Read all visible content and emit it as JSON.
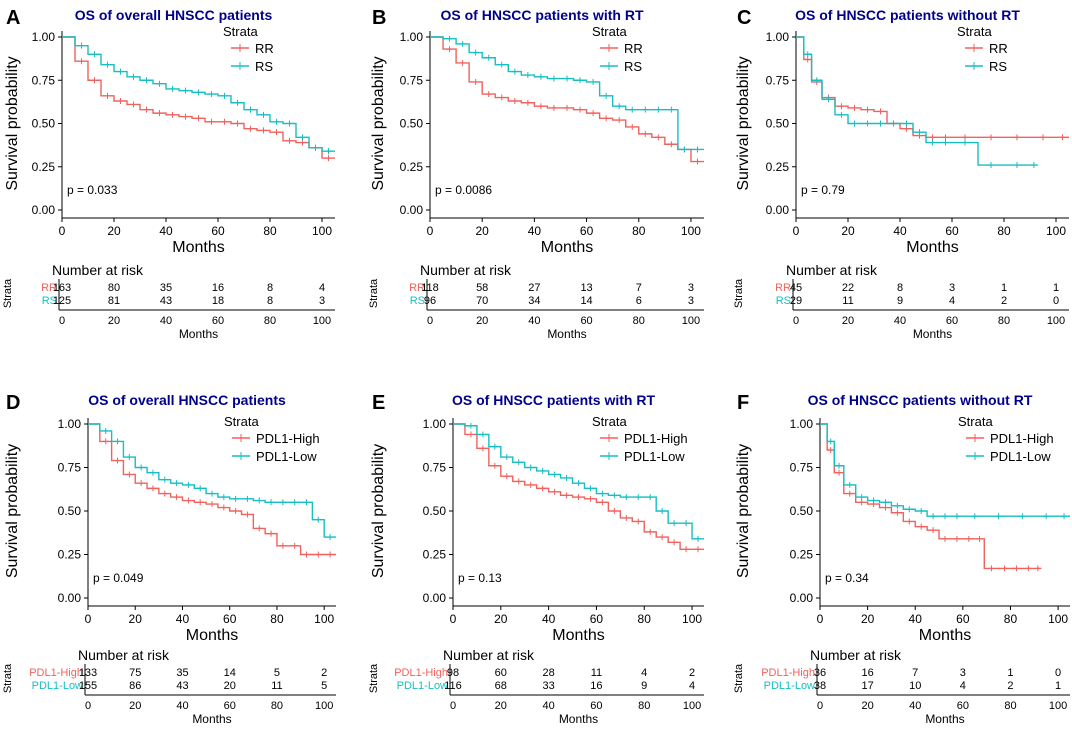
{
  "colors": {
    "red": "#f0625d",
    "teal": "#17bec3",
    "title": "#00008b",
    "axis": "#000000"
  },
  "common": {
    "ylabel": "Survival probability",
    "xlabel": "Months",
    "strata_title": "Strata",
    "risk_title": "Number at risk",
    "risk_ylabel": "Strata",
    "risk_xlabel": "Months",
    "y_ticks": [
      "0.00",
      "0.25",
      "0.50",
      "0.75",
      "1.00"
    ],
    "x_ticks": [
      "0",
      "20",
      "40",
      "60",
      "80",
      "100"
    ]
  },
  "chart_data": [
    {
      "type": "line",
      "letter": "A",
      "title": "OS of overall HNSCC patients",
      "pvalue": "p = 0.033",
      "xlim": [
        0,
        105
      ],
      "ylim": [
        0,
        1
      ],
      "risk_times": [
        0,
        20,
        40,
        60,
        80,
        100
      ],
      "series": [
        {
          "name": "RR",
          "color": "red",
          "x": [
            0,
            5,
            10,
            15,
            20,
            25,
            30,
            35,
            40,
            45,
            50,
            55,
            60,
            65,
            70,
            75,
            80,
            85,
            90,
            95,
            100,
            105
          ],
          "y": [
            1,
            0.86,
            0.75,
            0.66,
            0.63,
            0.61,
            0.58,
            0.56,
            0.55,
            0.54,
            0.53,
            0.51,
            0.51,
            0.5,
            0.47,
            0.46,
            0.45,
            0.4,
            0.39,
            0.36,
            0.3,
            0.3
          ],
          "risk": [
            163,
            80,
            35,
            16,
            8,
            4
          ]
        },
        {
          "name": "RS",
          "color": "teal",
          "x": [
            0,
            5,
            10,
            15,
            20,
            25,
            30,
            35,
            40,
            45,
            50,
            55,
            60,
            65,
            70,
            75,
            80,
            85,
            90,
            95,
            100,
            105
          ],
          "y": [
            1,
            0.95,
            0.9,
            0.84,
            0.8,
            0.77,
            0.75,
            0.73,
            0.7,
            0.69,
            0.68,
            0.67,
            0.66,
            0.62,
            0.58,
            0.55,
            0.51,
            0.5,
            0.42,
            0.36,
            0.34,
            0.34
          ],
          "risk": [
            125,
            81,
            43,
            18,
            8,
            3
          ]
        }
      ]
    },
    {
      "type": "line",
      "letter": "B",
      "title": "OS of HNSCC patients with RT",
      "pvalue": "p = 0.0086",
      "xlim": [
        0,
        105
      ],
      "ylim": [
        0,
        1
      ],
      "risk_times": [
        0,
        20,
        40,
        60,
        80,
        100
      ],
      "series": [
        {
          "name": "RR",
          "color": "red",
          "x": [
            0,
            5,
            10,
            15,
            20,
            25,
            30,
            35,
            40,
            45,
            50,
            55,
            60,
            65,
            70,
            75,
            80,
            85,
            90,
            95,
            100,
            105
          ],
          "y": [
            1,
            0.93,
            0.85,
            0.74,
            0.67,
            0.65,
            0.63,
            0.62,
            0.6,
            0.59,
            0.59,
            0.58,
            0.56,
            0.53,
            0.52,
            0.48,
            0.44,
            0.42,
            0.38,
            0.35,
            0.28,
            0.28
          ],
          "risk": [
            118,
            58,
            27,
            13,
            7,
            3
          ]
        },
        {
          "name": "RS",
          "color": "teal",
          "x": [
            0,
            5,
            10,
            15,
            20,
            25,
            30,
            35,
            40,
            45,
            50,
            55,
            60,
            65,
            70,
            75,
            80,
            85,
            90,
            95,
            100,
            105
          ],
          "y": [
            1,
            0.99,
            0.96,
            0.91,
            0.88,
            0.84,
            0.8,
            0.78,
            0.77,
            0.76,
            0.76,
            0.75,
            0.74,
            0.66,
            0.6,
            0.58,
            0.58,
            0.58,
            0.58,
            0.35,
            0.35,
            0.35
          ],
          "risk": [
            96,
            70,
            34,
            14,
            6,
            3
          ]
        }
      ]
    },
    {
      "type": "line",
      "letter": "C",
      "title": "OS of HNSCC patients without RT",
      "pvalue": "p = 0.79",
      "xlim": [
        0,
        105
      ],
      "ylim": [
        0,
        1
      ],
      "risk_times": [
        0,
        20,
        40,
        60,
        80,
        100
      ],
      "series": [
        {
          "name": "RR",
          "color": "red",
          "x": [
            0,
            3,
            6,
            10,
            15,
            20,
            25,
            30,
            35,
            40,
            45,
            50,
            55,
            60,
            70,
            80,
            90,
            100,
            105
          ],
          "y": [
            1,
            0.87,
            0.74,
            0.65,
            0.6,
            0.59,
            0.58,
            0.57,
            0.5,
            0.47,
            0.43,
            0.42,
            0.42,
            0.42,
            0.42,
            0.42,
            0.42,
            0.42,
            0.42
          ],
          "risk": [
            45,
            22,
            8,
            3,
            1,
            1
          ]
        },
        {
          "name": "RS",
          "color": "teal",
          "x": [
            0,
            3,
            6,
            10,
            15,
            20,
            25,
            30,
            35,
            40,
            45,
            50,
            55,
            60,
            70,
            80,
            90,
            93
          ],
          "y": [
            1,
            0.9,
            0.75,
            0.64,
            0.55,
            0.5,
            0.5,
            0.5,
            0.5,
            0.5,
            0.45,
            0.39,
            0.39,
            0.39,
            0.26,
            0.26,
            0.26,
            0.26
          ],
          "risk": [
            29,
            11,
            9,
            4,
            2,
            0
          ]
        }
      ]
    },
    {
      "type": "line",
      "letter": "D",
      "title": "OS of overall HNSCC patients",
      "pvalue": "p = 0.049",
      "xlim": [
        0,
        105
      ],
      "ylim": [
        0,
        1
      ],
      "risk_times": [
        0,
        20,
        40,
        60,
        80,
        100
      ],
      "series": [
        {
          "name": "PDL1-High",
          "color": "red",
          "x": [
            0,
            5,
            10,
            15,
            20,
            25,
            30,
            35,
            40,
            45,
            50,
            55,
            60,
            65,
            70,
            75,
            80,
            85,
            90,
            95,
            100,
            105
          ],
          "y": [
            1,
            0.9,
            0.79,
            0.71,
            0.66,
            0.63,
            0.6,
            0.58,
            0.56,
            0.55,
            0.54,
            0.52,
            0.5,
            0.48,
            0.4,
            0.37,
            0.3,
            0.3,
            0.25,
            0.25,
            0.25,
            0.25
          ],
          "risk": [
            133,
            75,
            35,
            14,
            5,
            2
          ]
        },
        {
          "name": "PDL1-Low",
          "color": "teal",
          "x": [
            0,
            5,
            10,
            15,
            20,
            25,
            30,
            35,
            40,
            45,
            50,
            55,
            60,
            65,
            70,
            75,
            80,
            85,
            90,
            95,
            100,
            105
          ],
          "y": [
            1,
            0.96,
            0.9,
            0.81,
            0.75,
            0.72,
            0.68,
            0.66,
            0.65,
            0.63,
            0.6,
            0.58,
            0.57,
            0.57,
            0.56,
            0.55,
            0.55,
            0.55,
            0.55,
            0.45,
            0.35,
            0.35
          ],
          "risk": [
            155,
            86,
            43,
            20,
            11,
            5
          ]
        }
      ]
    },
    {
      "type": "line",
      "letter": "E",
      "title": "OS of HNSCC patients with RT",
      "pvalue": "p = 0.13",
      "xlim": [
        0,
        105
      ],
      "ylim": [
        0,
        1
      ],
      "risk_times": [
        0,
        20,
        40,
        60,
        80,
        100
      ],
      "series": [
        {
          "name": "PDL1-High",
          "color": "red",
          "x": [
            0,
            5,
            10,
            15,
            20,
            25,
            30,
            35,
            40,
            45,
            50,
            55,
            60,
            65,
            70,
            75,
            80,
            85,
            90,
            95,
            100,
            105
          ],
          "y": [
            1,
            0.94,
            0.86,
            0.76,
            0.7,
            0.67,
            0.65,
            0.63,
            0.61,
            0.59,
            0.58,
            0.57,
            0.55,
            0.5,
            0.46,
            0.44,
            0.38,
            0.35,
            0.32,
            0.28,
            0.28,
            0.28
          ],
          "risk": [
            98,
            60,
            28,
            11,
            4,
            2
          ]
        },
        {
          "name": "PDL1-Low",
          "color": "teal",
          "x": [
            0,
            5,
            10,
            15,
            20,
            25,
            30,
            35,
            40,
            45,
            50,
            55,
            60,
            65,
            70,
            75,
            80,
            85,
            90,
            95,
            100,
            105
          ],
          "y": [
            1,
            0.99,
            0.94,
            0.87,
            0.81,
            0.78,
            0.75,
            0.73,
            0.71,
            0.69,
            0.66,
            0.63,
            0.6,
            0.59,
            0.58,
            0.58,
            0.58,
            0.5,
            0.43,
            0.43,
            0.34,
            0.34
          ],
          "risk": [
            116,
            68,
            33,
            16,
            9,
            4
          ]
        }
      ]
    },
    {
      "type": "line",
      "letter": "F",
      "title": "OS of HNSCC patients without RT",
      "pvalue": "p = 0.34",
      "xlim": [
        0,
        105
      ],
      "ylim": [
        0,
        1
      ],
      "risk_times": [
        0,
        20,
        40,
        60,
        80,
        100
      ],
      "series": [
        {
          "name": "PDL1-High",
          "color": "red",
          "x": [
            0,
            3,
            6,
            10,
            15,
            20,
            25,
            30,
            35,
            40,
            45,
            50,
            55,
            60,
            65,
            69,
            75,
            80,
            85,
            90,
            93
          ],
          "y": [
            1,
            0.85,
            0.72,
            0.6,
            0.55,
            0.54,
            0.52,
            0.49,
            0.44,
            0.41,
            0.39,
            0.34,
            0.34,
            0.34,
            0.34,
            0.17,
            0.17,
            0.17,
            0.17,
            0.17,
            0.17
          ],
          "risk": [
            36,
            16,
            7,
            3,
            1,
            0
          ]
        },
        {
          "name": "PDL1-Low",
          "color": "teal",
          "x": [
            0,
            3,
            6,
            10,
            15,
            20,
            25,
            30,
            35,
            40,
            45,
            50,
            55,
            60,
            70,
            80,
            90,
            100,
            105
          ],
          "y": [
            1,
            0.9,
            0.76,
            0.65,
            0.58,
            0.56,
            0.55,
            0.53,
            0.51,
            0.5,
            0.47,
            0.47,
            0.47,
            0.47,
            0.47,
            0.47,
            0.47,
            0.47,
            0.47
          ],
          "risk": [
            38,
            17,
            10,
            4,
            2,
            1
          ]
        }
      ]
    }
  ]
}
